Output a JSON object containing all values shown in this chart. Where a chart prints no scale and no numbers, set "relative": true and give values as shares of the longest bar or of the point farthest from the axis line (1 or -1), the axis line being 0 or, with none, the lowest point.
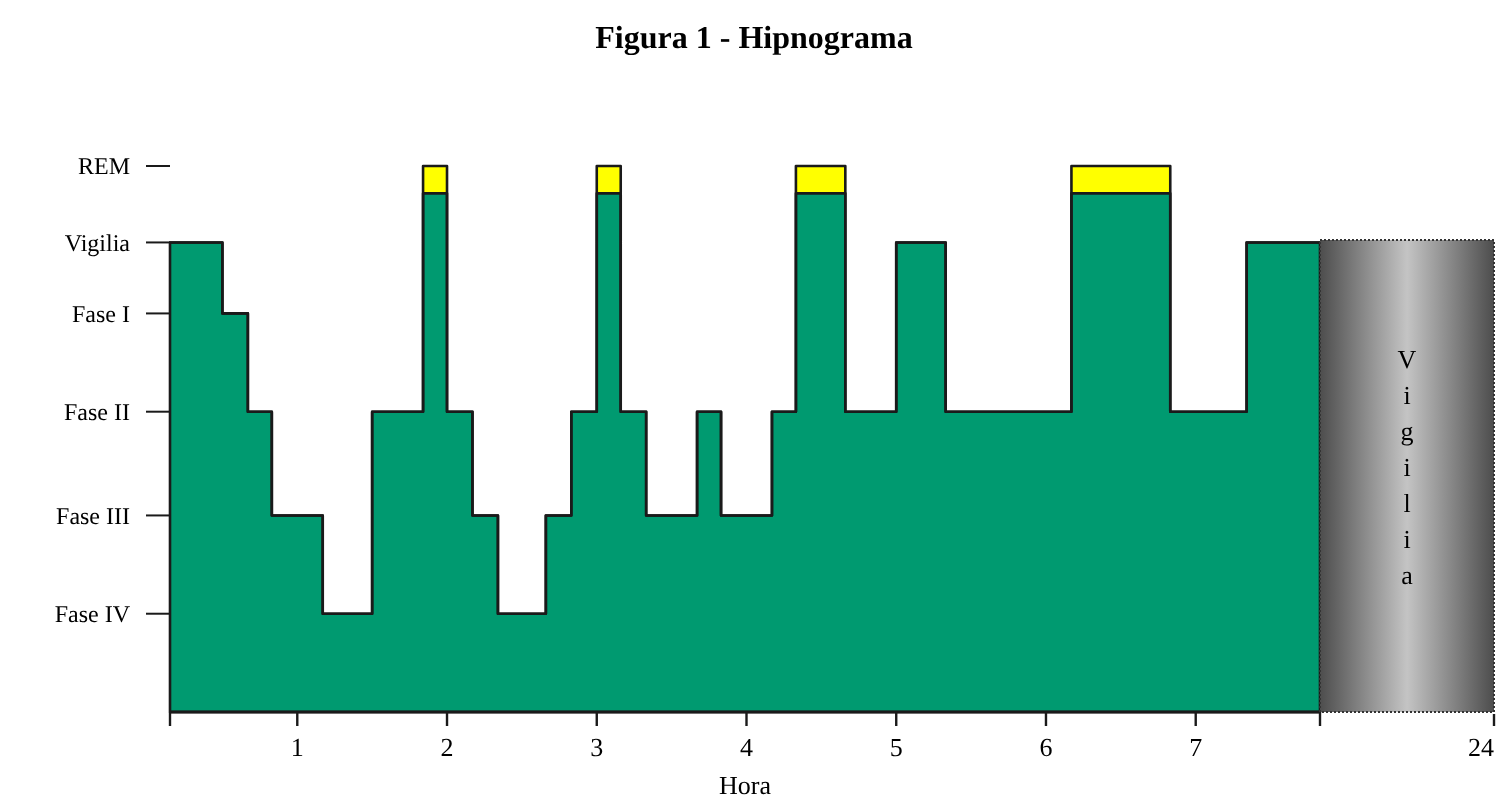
{
  "chart_data": [
    {
      "type": "area",
      "title": "Figura 1 - Hipnograma",
      "xlabel": "Hora",
      "relative": true,
      "stacked": true,
      "x": [
        0.15,
        0.5,
        0.5,
        0.67,
        0.67,
        0.83,
        0.83,
        1.17,
        1.17,
        1.5,
        1.5,
        1.84,
        1.84,
        2.0,
        2.0,
        2.17,
        2.17,
        2.34,
        2.34,
        2.66,
        2.66,
        2.83,
        2.83,
        3.0,
        3.0,
        3.16,
        3.16,
        3.33,
        3.33,
        3.67,
        3.67,
        3.83,
        3.83,
        4.17,
        4.17,
        4.33,
        4.33,
        4.66,
        4.66,
        5.0,
        5.0,
        5.33,
        5.33,
        6.17,
        6.17,
        6.83,
        6.83,
        7.34,
        7.34,
        7.83
      ],
      "series": [
        {
          "color": "#009a70",
          "values": [
            0.86,
            0.86,
            0.73,
            0.73,
            0.55,
            0.55,
            0.36,
            0.36,
            0.18,
            0.18,
            0.55,
            0.55,
            0.95,
            0.95,
            0.55,
            0.55,
            0.36,
            0.36,
            0.18,
            0.18,
            0.36,
            0.36,
            0.55,
            0.55,
            0.95,
            0.95,
            0.55,
            0.55,
            0.36,
            0.36,
            0.55,
            0.55,
            0.36,
            0.36,
            0.55,
            0.55,
            0.95,
            0.95,
            0.55,
            0.55,
            0.86,
            0.86,
            0.55,
            0.55,
            0.95,
            0.95,
            0.55,
            0.55,
            0.86,
            0.86
          ]
        },
        {
          "color": "#ffff00",
          "values": [
            0,
            0,
            0,
            0,
            0,
            0,
            0,
            0,
            0,
            0,
            0,
            0,
            0.05,
            0.05,
            0,
            0,
            0,
            0,
            0,
            0,
            0,
            0,
            0,
            0,
            0.05,
            0.05,
            0,
            0,
            0,
            0,
            0,
            0,
            0,
            0,
            0,
            0,
            0.05,
            0.05,
            0,
            0,
            0,
            0,
            0,
            0,
            0.05,
            0.05,
            0,
            0,
            0,
            0
          ]
        }
      ],
      "xlim": [
        0.15,
        7.83
      ],
      "xticks": [
        {
          "value": 0.15,
          "label": null
        },
        1,
        2,
        3,
        4,
        5,
        6,
        7,
        {
          "value": 7.83,
          "label": null
        }
      ],
      "annotations": [
        "REM",
        "Vigilia",
        "Fase I",
        "Fase II",
        "Fase III",
        "Fase IV"
      ]
    },
    {
      "type": "other",
      "annotations": [
        "Vigilia",
        "24"
      ]
    }
  ]
}
